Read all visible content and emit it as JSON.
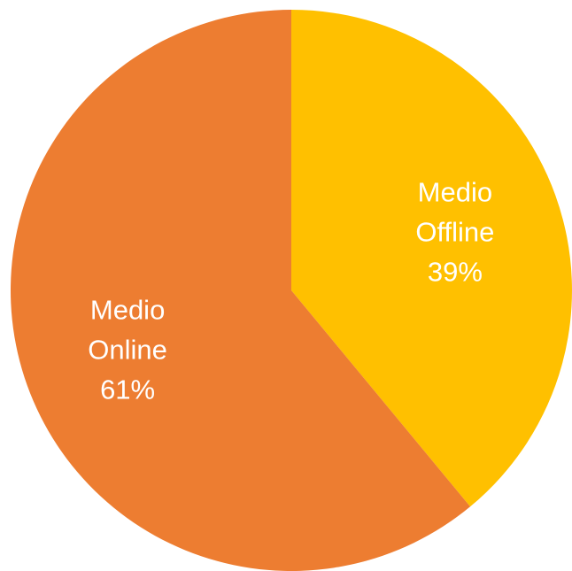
{
  "chart_data": {
    "type": "pie",
    "title": "",
    "slices": [
      {
        "label_lines": [
          "Medio",
          "Offline"
        ],
        "value": 39,
        "value_label": "39%",
        "color": "#FFC000"
      },
      {
        "label_lines": [
          "Medio",
          "Online"
        ],
        "value": 61,
        "value_label": "61%",
        "color": "#ED7D31"
      }
    ],
    "legend": "none",
    "data_labels": "inside"
  }
}
